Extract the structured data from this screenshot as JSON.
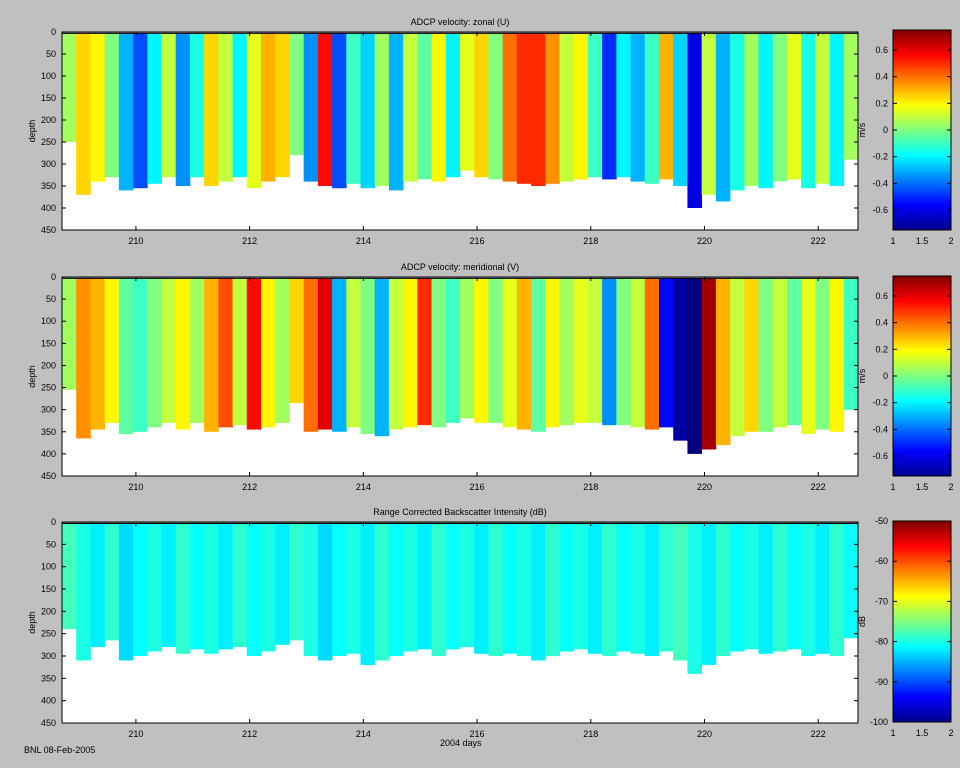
{
  "footer": {
    "credit": "BNL 08-Feb-2005",
    "xlabel": "2004 days"
  },
  "chart_data": [
    {
      "type": "heatmap",
      "title": "ADCP velocity: zonal (U)",
      "xlabel": "",
      "ylabel": "depth",
      "xlim": [
        208.7,
        222.7
      ],
      "ylim": [
        450,
        0
      ],
      "xticks": [
        210,
        212,
        214,
        216,
        218,
        220,
        222
      ],
      "yticks": [
        0,
        50,
        100,
        150,
        200,
        250,
        300,
        350,
        400,
        450
      ],
      "colorbar": {
        "label": "m/s",
        "range": [
          -0.75,
          0.75
        ],
        "ticks": [
          "0.6",
          "0.4",
          "0.2",
          "0",
          "-0.2",
          "-0.4",
          "-0.6"
        ],
        "tick_values": [
          0.6,
          0.4,
          0.2,
          0,
          -0.2,
          -0.4,
          -0.6
        ],
        "xticks": [
          "1",
          "1.5",
          "2"
        ]
      },
      "profiles": [
        {
          "x": 208.7,
          "value": 0.05,
          "bottom": 250
        },
        {
          "x": 208.95,
          "value": 0.25,
          "bottom": 370
        },
        {
          "x": 209.2,
          "value": 0.2,
          "bottom": 340
        },
        {
          "x": 209.45,
          "value": 0.0,
          "bottom": 330
        },
        {
          "x": 209.7,
          "value": -0.3,
          "bottom": 360
        },
        {
          "x": 209.95,
          "value": -0.45,
          "bottom": 355
        },
        {
          "x": 210.2,
          "value": -0.2,
          "bottom": 345
        },
        {
          "x": 210.45,
          "value": 0.1,
          "bottom": 330
        },
        {
          "x": 210.7,
          "value": -0.35,
          "bottom": 350
        },
        {
          "x": 210.95,
          "value": -0.15,
          "bottom": 330
        },
        {
          "x": 211.2,
          "value": 0.25,
          "bottom": 350
        },
        {
          "x": 211.45,
          "value": 0.1,
          "bottom": 340
        },
        {
          "x": 211.7,
          "value": -0.2,
          "bottom": 330
        },
        {
          "x": 211.95,
          "value": 0.15,
          "bottom": 355
        },
        {
          "x": 212.2,
          "value": 0.3,
          "bottom": 340
        },
        {
          "x": 212.45,
          "value": 0.25,
          "bottom": 330
        },
        {
          "x": 212.7,
          "value": 0.0,
          "bottom": 280
        },
        {
          "x": 212.95,
          "value": -0.35,
          "bottom": 340
        },
        {
          "x": 213.2,
          "value": 0.55,
          "bottom": 350
        },
        {
          "x": 213.45,
          "value": -0.45,
          "bottom": 355
        },
        {
          "x": 213.7,
          "value": -0.1,
          "bottom": 345
        },
        {
          "x": 213.95,
          "value": -0.25,
          "bottom": 355
        },
        {
          "x": 214.2,
          "value": 0.05,
          "bottom": 350
        },
        {
          "x": 214.45,
          "value": -0.3,
          "bottom": 360
        },
        {
          "x": 214.7,
          "value": 0.1,
          "bottom": 340
        },
        {
          "x": 214.95,
          "value": -0.05,
          "bottom": 335
        },
        {
          "x": 215.2,
          "value": 0.2,
          "bottom": 340
        },
        {
          "x": 215.45,
          "value": -0.2,
          "bottom": 330
        },
        {
          "x": 215.7,
          "value": 0.15,
          "bottom": 315
        },
        {
          "x": 215.95,
          "value": 0.25,
          "bottom": 330
        },
        {
          "x": 216.2,
          "value": 0.0,
          "bottom": 335
        },
        {
          "x": 216.45,
          "value": 0.4,
          "bottom": 340
        },
        {
          "x": 216.7,
          "value": 0.5,
          "bottom": 345
        },
        {
          "x": 216.95,
          "value": 0.5,
          "bottom": 350
        },
        {
          "x": 217.2,
          "value": 0.35,
          "bottom": 345
        },
        {
          "x": 217.45,
          "value": 0.1,
          "bottom": 340
        },
        {
          "x": 217.7,
          "value": 0.2,
          "bottom": 335
        },
        {
          "x": 217.95,
          "value": -0.1,
          "bottom": 330
        },
        {
          "x": 218.2,
          "value": -0.5,
          "bottom": 335
        },
        {
          "x": 218.45,
          "value": -0.2,
          "bottom": 330
        },
        {
          "x": 218.7,
          "value": -0.3,
          "bottom": 340
        },
        {
          "x": 218.95,
          "value": -0.1,
          "bottom": 345
        },
        {
          "x": 219.2,
          "value": 0.3,
          "bottom": 335
        },
        {
          "x": 219.45,
          "value": -0.25,
          "bottom": 350
        },
        {
          "x": 219.7,
          "value": -0.6,
          "bottom": 400
        },
        {
          "x": 219.95,
          "value": 0.1,
          "bottom": 370
        },
        {
          "x": 220.2,
          "value": -0.3,
          "bottom": 385
        },
        {
          "x": 220.45,
          "value": -0.15,
          "bottom": 360
        },
        {
          "x": 220.7,
          "value": 0.05,
          "bottom": 350
        },
        {
          "x": 220.95,
          "value": -0.2,
          "bottom": 355
        },
        {
          "x": 221.2,
          "value": 0.0,
          "bottom": 340
        },
        {
          "x": 221.45,
          "value": 0.15,
          "bottom": 335
        },
        {
          "x": 221.7,
          "value": -0.15,
          "bottom": 355
        },
        {
          "x": 221.95,
          "value": 0.1,
          "bottom": 345
        },
        {
          "x": 222.2,
          "value": -0.2,
          "bottom": 350
        },
        {
          "x": 222.45,
          "value": 0.05,
          "bottom": 290
        }
      ]
    },
    {
      "type": "heatmap",
      "title": "ADCP velocity: meridional (V)",
      "xlabel": "",
      "ylabel": "depth",
      "xlim": [
        208.7,
        222.7
      ],
      "ylim": [
        450,
        0
      ],
      "xticks": [
        210,
        212,
        214,
        216,
        218,
        220,
        222
      ],
      "yticks": [
        0,
        50,
        100,
        150,
        200,
        250,
        300,
        350,
        400,
        450
      ],
      "colorbar": {
        "label": "m/s",
        "range": [
          -0.75,
          0.75
        ],
        "ticks": [
          "0.6",
          "0.4",
          "0.2",
          "0",
          "-0.2",
          "-0.4",
          "-0.6"
        ],
        "tick_values": [
          0.6,
          0.4,
          0.2,
          0,
          -0.2,
          -0.4,
          -0.6
        ],
        "xticks": [
          "1",
          "1.5",
          "2"
        ]
      },
      "profiles": [
        {
          "x": 208.7,
          "value": 0.05,
          "bottom": 255
        },
        {
          "x": 208.95,
          "value": 0.35,
          "bottom": 365
        },
        {
          "x": 209.2,
          "value": 0.3,
          "bottom": 345
        },
        {
          "x": 209.45,
          "value": 0.2,
          "bottom": 330
        },
        {
          "x": 209.7,
          "value": -0.05,
          "bottom": 355
        },
        {
          "x": 209.95,
          "value": -0.1,
          "bottom": 350
        },
        {
          "x": 210.2,
          "value": 0.0,
          "bottom": 340
        },
        {
          "x": 210.45,
          "value": 0.1,
          "bottom": 330
        },
        {
          "x": 210.7,
          "value": 0.2,
          "bottom": 345
        },
        {
          "x": 210.95,
          "value": 0.05,
          "bottom": 330
        },
        {
          "x": 211.2,
          "value": 0.3,
          "bottom": 350
        },
        {
          "x": 211.45,
          "value": 0.45,
          "bottom": 340
        },
        {
          "x": 211.7,
          "value": 0.1,
          "bottom": 335
        },
        {
          "x": 211.95,
          "value": 0.55,
          "bottom": 345
        },
        {
          "x": 212.2,
          "value": 0.2,
          "bottom": 340
        },
        {
          "x": 212.45,
          "value": 0.05,
          "bottom": 330
        },
        {
          "x": 212.7,
          "value": 0.25,
          "bottom": 285
        },
        {
          "x": 212.95,
          "value": 0.4,
          "bottom": 350
        },
        {
          "x": 213.2,
          "value": 0.6,
          "bottom": 345
        },
        {
          "x": 213.45,
          "value": -0.3,
          "bottom": 350
        },
        {
          "x": 213.7,
          "value": 0.1,
          "bottom": 340
        },
        {
          "x": 213.95,
          "value": 0.0,
          "bottom": 355
        },
        {
          "x": 214.2,
          "value": -0.3,
          "bottom": 360
        },
        {
          "x": 214.45,
          "value": 0.1,
          "bottom": 345
        },
        {
          "x": 214.7,
          "value": 0.2,
          "bottom": 340
        },
        {
          "x": 214.95,
          "value": 0.5,
          "bottom": 335
        },
        {
          "x": 215.2,
          "value": 0.0,
          "bottom": 340
        },
        {
          "x": 215.45,
          "value": -0.1,
          "bottom": 330
        },
        {
          "x": 215.7,
          "value": 0.05,
          "bottom": 320
        },
        {
          "x": 215.95,
          "value": 0.2,
          "bottom": 330
        },
        {
          "x": 216.2,
          "value": 0.0,
          "bottom": 330
        },
        {
          "x": 216.45,
          "value": 0.15,
          "bottom": 340
        },
        {
          "x": 216.7,
          "value": 0.3,
          "bottom": 345
        },
        {
          "x": 216.95,
          "value": -0.05,
          "bottom": 350
        },
        {
          "x": 217.2,
          "value": 0.2,
          "bottom": 340
        },
        {
          "x": 217.45,
          "value": 0.05,
          "bottom": 335
        },
        {
          "x": 217.7,
          "value": 0.15,
          "bottom": 330
        },
        {
          "x": 217.95,
          "value": 0.1,
          "bottom": 330
        },
        {
          "x": 218.2,
          "value": -0.35,
          "bottom": 335
        },
        {
          "x": 218.45,
          "value": 0.0,
          "bottom": 335
        },
        {
          "x": 218.7,
          "value": 0.1,
          "bottom": 340
        },
        {
          "x": 218.95,
          "value": 0.4,
          "bottom": 345
        },
        {
          "x": 219.2,
          "value": -0.55,
          "bottom": 340
        },
        {
          "x": 219.45,
          "value": -0.7,
          "bottom": 370
        },
        {
          "x": 219.7,
          "value": -0.75,
          "bottom": 400
        },
        {
          "x": 219.95,
          "value": 0.7,
          "bottom": 390
        },
        {
          "x": 220.2,
          "value": 0.3,
          "bottom": 380
        },
        {
          "x": 220.45,
          "value": 0.1,
          "bottom": 360
        },
        {
          "x": 220.7,
          "value": 0.25,
          "bottom": 350
        },
        {
          "x": 220.95,
          "value": 0.0,
          "bottom": 350
        },
        {
          "x": 221.2,
          "value": 0.1,
          "bottom": 340
        },
        {
          "x": 221.45,
          "value": -0.05,
          "bottom": 335
        },
        {
          "x": 221.7,
          "value": 0.15,
          "bottom": 355
        },
        {
          "x": 221.95,
          "value": 0.0,
          "bottom": 345
        },
        {
          "x": 222.2,
          "value": 0.2,
          "bottom": 350
        },
        {
          "x": 222.45,
          "value": -0.1,
          "bottom": 300
        }
      ]
    },
    {
      "type": "heatmap",
      "title": "Range Corrected Backscatter Intensity (dB)",
      "xlabel": "2004 days",
      "ylabel": "depth",
      "xlim": [
        208.7,
        222.7
      ],
      "ylim": [
        450,
        0
      ],
      "xticks": [
        210,
        212,
        214,
        216,
        218,
        220,
        222
      ],
      "yticks": [
        0,
        50,
        100,
        150,
        200,
        250,
        300,
        350,
        400,
        450
      ],
      "colorbar": {
        "label": "dB",
        "range": [
          -100,
          -50
        ],
        "ticks": [
          "-50",
          "-60",
          "-70",
          "-80",
          "-90",
          "-100"
        ],
        "tick_values": [
          -50,
          -60,
          -70,
          -80,
          -90,
          -100
        ],
        "xticks": [
          "1",
          "1.5",
          "2"
        ]
      },
      "profiles": [
        {
          "x": 208.7,
          "value": -78,
          "bottom": 240
        },
        {
          "x": 208.95,
          "value": -80,
          "bottom": 310
        },
        {
          "x": 209.2,
          "value": -82,
          "bottom": 280
        },
        {
          "x": 209.45,
          "value": -79,
          "bottom": 265
        },
        {
          "x": 209.7,
          "value": -83,
          "bottom": 310
        },
        {
          "x": 209.95,
          "value": -81,
          "bottom": 300
        },
        {
          "x": 210.2,
          "value": -80,
          "bottom": 290
        },
        {
          "x": 210.45,
          "value": -82,
          "bottom": 280
        },
        {
          "x": 210.7,
          "value": -79,
          "bottom": 295
        },
        {
          "x": 210.95,
          "value": -81,
          "bottom": 285
        },
        {
          "x": 211.2,
          "value": -80,
          "bottom": 295
        },
        {
          "x": 211.45,
          "value": -82,
          "bottom": 285
        },
        {
          "x": 211.7,
          "value": -79,
          "bottom": 280
        },
        {
          "x": 211.95,
          "value": -81,
          "bottom": 300
        },
        {
          "x": 212.2,
          "value": -80,
          "bottom": 290
        },
        {
          "x": 212.45,
          "value": -82,
          "bottom": 275
        },
        {
          "x": 212.7,
          "value": -79,
          "bottom": 265
        },
        {
          "x": 212.95,
          "value": -80,
          "bottom": 300
        },
        {
          "x": 213.2,
          "value": -83,
          "bottom": 310
        },
        {
          "x": 213.45,
          "value": -81,
          "bottom": 300
        },
        {
          "x": 213.7,
          "value": -80,
          "bottom": 295
        },
        {
          "x": 213.95,
          "value": -82,
          "bottom": 320
        },
        {
          "x": 214.2,
          "value": -79,
          "bottom": 310
        },
        {
          "x": 214.45,
          "value": -81,
          "bottom": 300
        },
        {
          "x": 214.7,
          "value": -80,
          "bottom": 290
        },
        {
          "x": 214.95,
          "value": -82,
          "bottom": 285
        },
        {
          "x": 215.2,
          "value": -79,
          "bottom": 300
        },
        {
          "x": 215.45,
          "value": -81,
          "bottom": 285
        },
        {
          "x": 215.7,
          "value": -80,
          "bottom": 280
        },
        {
          "x": 215.95,
          "value": -82,
          "bottom": 295
        },
        {
          "x": 216.2,
          "value": -79,
          "bottom": 300
        },
        {
          "x": 216.45,
          "value": -81,
          "bottom": 295
        },
        {
          "x": 216.7,
          "value": -80,
          "bottom": 300
        },
        {
          "x": 216.95,
          "value": -82,
          "bottom": 310
        },
        {
          "x": 217.2,
          "value": -79,
          "bottom": 300
        },
        {
          "x": 217.45,
          "value": -81,
          "bottom": 290
        },
        {
          "x": 217.7,
          "value": -80,
          "bottom": 285
        },
        {
          "x": 217.95,
          "value": -82,
          "bottom": 295
        },
        {
          "x": 218.2,
          "value": -79,
          "bottom": 300
        },
        {
          "x": 218.45,
          "value": -81,
          "bottom": 290
        },
        {
          "x": 218.7,
          "value": -80,
          "bottom": 295
        },
        {
          "x": 218.95,
          "value": -82,
          "bottom": 300
        },
        {
          "x": 219.2,
          "value": -79,
          "bottom": 290
        },
        {
          "x": 219.45,
          "value": -78,
          "bottom": 310
        },
        {
          "x": 219.7,
          "value": -80,
          "bottom": 340
        },
        {
          "x": 219.95,
          "value": -82,
          "bottom": 320
        },
        {
          "x": 220.2,
          "value": -79,
          "bottom": 300
        },
        {
          "x": 220.45,
          "value": -81,
          "bottom": 290
        },
        {
          "x": 220.7,
          "value": -80,
          "bottom": 285
        },
        {
          "x": 220.95,
          "value": -82,
          "bottom": 295
        },
        {
          "x": 221.2,
          "value": -79,
          "bottom": 290
        },
        {
          "x": 221.45,
          "value": -81,
          "bottom": 285
        },
        {
          "x": 221.7,
          "value": -80,
          "bottom": 300
        },
        {
          "x": 221.95,
          "value": -82,
          "bottom": 295
        },
        {
          "x": 222.2,
          "value": -79,
          "bottom": 300
        },
        {
          "x": 222.45,
          "value": -81,
          "bottom": 260
        }
      ]
    }
  ]
}
